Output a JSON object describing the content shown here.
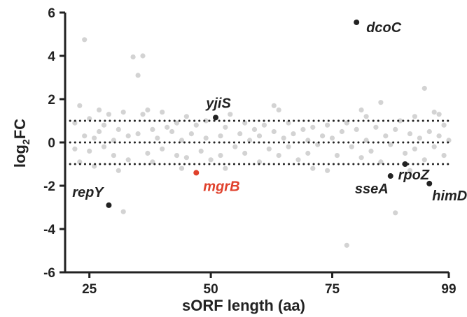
{
  "chart_data": {
    "type": "scatter",
    "title": "",
    "xlabel": "sORF length (aa)",
    "ylabel": "log₂FC",
    "ylabel_main": "log",
    "ylabel_sub": "2",
    "ylabel_tail": "FC",
    "xlim": [
      20,
      99
    ],
    "ylim": [
      -6,
      6
    ],
    "x_ticks": [
      25,
      50,
      75,
      99
    ],
    "y_ticks": [
      6,
      4,
      2,
      0,
      -2,
      -4,
      -6
    ],
    "grid": false,
    "reference_lines": [
      1,
      0,
      -1
    ],
    "colors": {
      "background_points": "#d3d3d3",
      "highlight": "#222222",
      "mgrB": "#e0412c",
      "axis": "#222222"
    },
    "highlighted_points": [
      {
        "name": "dcoC",
        "x": 80,
        "y": 5.55,
        "color": "#222222"
      },
      {
        "name": "yjiS",
        "x": 51,
        "y": 1.15,
        "color": "#222222"
      },
      {
        "name": "mgrB",
        "x": 47,
        "y": -1.4,
        "color": "#e0412c"
      },
      {
        "name": "repY",
        "x": 29,
        "y": -2.9,
        "color": "#222222"
      },
      {
        "name": "sseA",
        "x": 87,
        "y": -1.55,
        "color": "#222222"
      },
      {
        "name": "rpoZ",
        "x": 90,
        "y": -1.0,
        "color": "#222222"
      },
      {
        "name": "himD",
        "x": 95,
        "y": -1.9,
        "color": "#222222"
      }
    ],
    "background_points": [
      [
        22,
        0.9
      ],
      [
        22,
        -0.3
      ],
      [
        23,
        1.7
      ],
      [
        24,
        4.75
      ],
      [
        24,
        0.3
      ],
      [
        25,
        -0.4
      ],
      [
        25,
        1.1
      ],
      [
        26,
        0.2
      ],
      [
        26,
        -1.1
      ],
      [
        27,
        0.5
      ],
      [
        27,
        1.5
      ],
      [
        28,
        -0.2
      ],
      [
        28,
        0.8
      ],
      [
        29,
        1.3
      ],
      [
        30,
        -0.6
      ],
      [
        30,
        0.1
      ],
      [
        31,
        0.6
      ],
      [
        32,
        -3.2
      ],
      [
        32,
        1.4
      ],
      [
        33,
        0.3
      ],
      [
        33,
        -0.8
      ],
      [
        34,
        3.95
      ],
      [
        35,
        3.1
      ],
      [
        35,
        0.4
      ],
      [
        36,
        4.0
      ],
      [
        36,
        1.3
      ],
      [
        37,
        -0.5
      ],
      [
        38,
        0.6
      ],
      [
        38,
        -0.9
      ],
      [
        39,
        0.2
      ],
      [
        40,
        1.4
      ],
      [
        40,
        -0.3
      ],
      [
        41,
        0.7
      ],
      [
        42,
        0.5
      ],
      [
        43,
        -0.6
      ],
      [
        43,
        0.9
      ],
      [
        44,
        0.1
      ],
      [
        45,
        1.2
      ],
      [
        45,
        -0.7
      ],
      [
        46,
        0.4
      ],
      [
        47,
        0.8
      ],
      [
        48,
        -0.4
      ],
      [
        49,
        0.2
      ],
      [
        49,
        1.0
      ],
      [
        50,
        -0.8
      ],
      [
        52,
        0.3
      ],
      [
        52,
        -0.6
      ],
      [
        53,
        0.7
      ],
      [
        54,
        1.3
      ],
      [
        55,
        -0.2
      ],
      [
        56,
        0.4
      ],
      [
        57,
        0.9
      ],
      [
        57,
        -0.5
      ],
      [
        58,
        0.1
      ],
      [
        59,
        0.6
      ],
      [
        60,
        -0.9
      ],
      [
        60,
        0.3
      ],
      [
        61,
        0.8
      ],
      [
        62,
        -0.3
      ],
      [
        63,
        1.7
      ],
      [
        63,
        0.5
      ],
      [
        64,
        -0.6
      ],
      [
        65,
        0.2
      ],
      [
        66,
        0.9
      ],
      [
        66,
        -0.2
      ],
      [
        67,
        0.4
      ],
      [
        68,
        -0.8
      ],
      [
        69,
        0.6
      ],
      [
        70,
        0.1
      ],
      [
        70,
        -0.5
      ],
      [
        71,
        0.7
      ],
      [
        72,
        -0.1
      ],
      [
        73,
        0.3
      ],
      [
        74,
        -1.3
      ],
      [
        74,
        0.8
      ],
      [
        75,
        0.2
      ],
      [
        76,
        -0.6
      ],
      [
        77,
        0.5
      ],
      [
        78,
        -4.75
      ],
      [
        78,
        0.9
      ],
      [
        79,
        -0.2
      ],
      [
        80,
        0.6
      ],
      [
        81,
        -0.7
      ],
      [
        82,
        1.2
      ],
      [
        82,
        0.1
      ],
      [
        83,
        -0.4
      ],
      [
        84,
        0.7
      ],
      [
        85,
        1.85
      ],
      [
        85,
        -0.9
      ],
      [
        86,
        0.3
      ],
      [
        87,
        -0.1
      ],
      [
        88,
        -3.25
      ],
      [
        88,
        0.6
      ],
      [
        89,
        1.0
      ],
      [
        90,
        -0.5
      ],
      [
        91,
        0.4
      ],
      [
        92,
        1.2
      ],
      [
        92,
        -0.3
      ],
      [
        93,
        0.2
      ],
      [
        94,
        2.5
      ],
      [
        94,
        -0.8
      ],
      [
        95,
        0.5
      ],
      [
        96,
        1.4
      ],
      [
        96,
        -0.2
      ],
      [
        97,
        0.3
      ],
      [
        98,
        -0.6
      ],
      [
        98,
        0.8
      ],
      [
        99,
        0.1
      ],
      [
        23,
        -0.9
      ],
      [
        31,
        -1.3
      ],
      [
        37,
        1.5
      ],
      [
        44,
        -1.2
      ],
      [
        53,
        -1.2
      ],
      [
        64,
        1.5
      ],
      [
        71,
        -1.2
      ],
      [
        81,
        1.5
      ],
      [
        91,
        -1.3
      ],
      [
        97,
        1.3
      ]
    ]
  }
}
